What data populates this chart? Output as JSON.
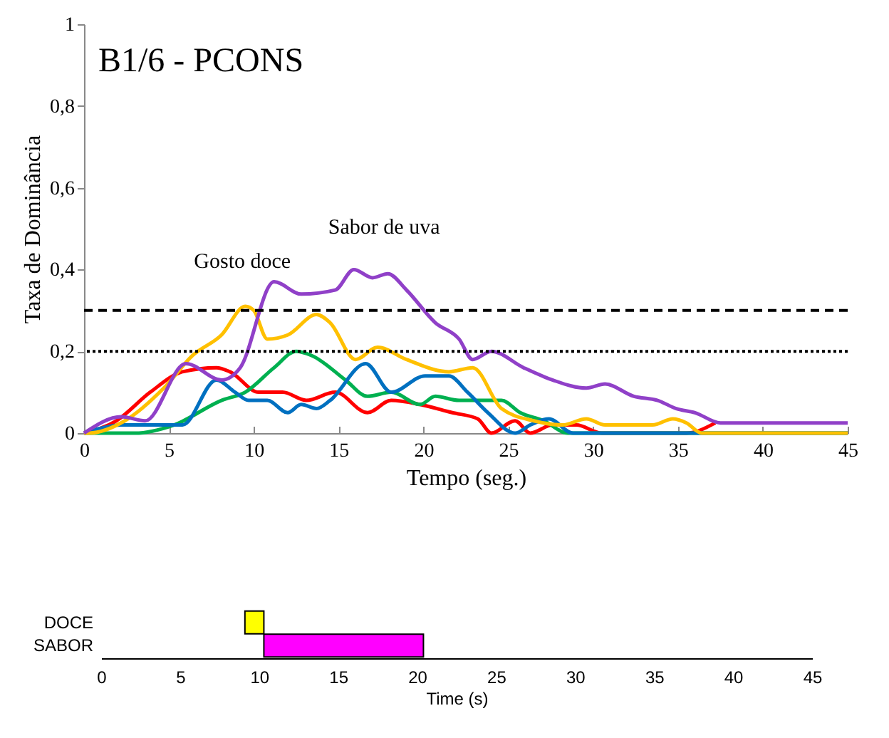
{
  "chart_data": [
    {
      "type": "line",
      "title": "B1/6 - PCONS",
      "xlabel": "Tempo (seg.)",
      "ylabel": "Taxa de Dominância",
      "xlim": [
        0,
        45
      ],
      "ylim": [
        0,
        1
      ],
      "xticks": [
        0,
        5,
        10,
        15,
        20,
        25,
        30,
        35,
        40,
        45
      ],
      "yticks": [
        0,
        {
          "value": 0.2,
          "label": "0,2"
        },
        {
          "value": 0.4,
          "label": "0,4"
        },
        {
          "value": 0.6,
          "label": "0,6"
        },
        {
          "value": 0.8,
          "label": "0,8"
        },
        1
      ],
      "grid": false,
      "legend": false,
      "marker": "none",
      "line_style": "solid",
      "ref_lines": [
        {
          "axis": "y",
          "value": 0.3,
          "line_style": "dashed",
          "color": "#000000"
        },
        {
          "axis": "y",
          "value": 0.2,
          "line_style": "dotted",
          "color": "#000000"
        }
      ],
      "annotations": [
        {
          "text": "Gosto doce",
          "x": 10,
          "y": 0.31
        },
        {
          "text": "Sabor de uva",
          "x": 16,
          "y": 0.4
        }
      ],
      "series": [
        {
          "color": "#ff0000",
          "x": [
            0,
            1.9,
            3.9,
            5.8,
            7.8,
            8.6,
            10.3,
            11.7,
            13.1,
            14.8,
            16.7,
            18.1,
            19.8,
            21.7,
            23.2,
            24,
            25.4,
            26.3,
            27.6,
            29,
            30.5,
            31.6,
            35.5,
            37.2
          ],
          "values": [
            0,
            0.03,
            0.1,
            0.15,
            0.16,
            0.15,
            0.1,
            0.1,
            0.08,
            0.1,
            0.05,
            0.08,
            0.07,
            0.05,
            0.035,
            0,
            0.03,
            0,
            0.02,
            0.02,
            0,
            0,
            0,
            0.025
          ]
        },
        {
          "color": "#00b050",
          "x": [
            0,
            3,
            5.3,
            8.1,
            9.5,
            11.2,
            12.5,
            13.4,
            15.4,
            16.7,
            18.1,
            19.8,
            20.7,
            22.1,
            23.5,
            24.6,
            25.7,
            27.1,
            28.5,
            45
          ],
          "values": [
            0,
            0,
            0.02,
            0.08,
            0.1,
            0.16,
            0.2,
            0.19,
            0.13,
            0.09,
            0.1,
            0.07,
            0.09,
            0.08,
            0.08,
            0.08,
            0.05,
            0.03,
            0,
            0
          ]
        },
        {
          "color": "#0070c0",
          "x": [
            0,
            0.8,
            2.2,
            5.8,
            7.8,
            8.9,
            9.7,
            10.8,
            12,
            12.8,
            13.7,
            14.5,
            16.6,
            18.1,
            20.1,
            21.5,
            22.6,
            23.8,
            25.4,
            26.3,
            27.4,
            28.8,
            45
          ],
          "values": [
            0,
            0.01,
            0.02,
            0.02,
            0.13,
            0.1,
            0.08,
            0.08,
            0.05,
            0.07,
            0.06,
            0.08,
            0.17,
            0.1,
            0.14,
            0.14,
            0.1,
            0.05,
            0,
            0.02,
            0.035,
            0,
            0
          ]
        },
        {
          "color": "#ffc000",
          "x": [
            0,
            0.3,
            2.4,
            4.7,
            6.4,
            8.1,
            9.5,
            10,
            10.8,
            12,
            13.7,
            14.5,
            16,
            17.3,
            19,
            21.5,
            22.9,
            24.6,
            26.5,
            28.2,
            29.6,
            30.7,
            31.8,
            33.5,
            34.7,
            35.5,
            36.4,
            45
          ],
          "values": [
            0,
            0,
            0.03,
            0.11,
            0.19,
            0.24,
            0.31,
            0.3,
            0.23,
            0.24,
            0.29,
            0.27,
            0.18,
            0.21,
            0.18,
            0.15,
            0.16,
            0.06,
            0.03,
            0.02,
            0.035,
            0.02,
            0.02,
            0.02,
            0.035,
            0.025,
            0,
            0
          ]
        },
        {
          "color": "#9040c8",
          "x": [
            0,
            2.2,
            3.6,
            6,
            8.1,
            9.2,
            11.2,
            12.8,
            14.8,
            15.9,
            17,
            17.9,
            19,
            20.7,
            22.1,
            22.9,
            24,
            25.9,
            27.6,
            29.6,
            30.7,
            32.4,
            33.8,
            34.9,
            36,
            37.5,
            45
          ],
          "values": [
            0,
            0.04,
            0.03,
            0.17,
            0.13,
            0.16,
            0.37,
            0.34,
            0.35,
            0.4,
            0.38,
            0.39,
            0.35,
            0.27,
            0.23,
            0.18,
            0.2,
            0.16,
            0.13,
            0.11,
            0.12,
            0.09,
            0.08,
            0.06,
            0.05,
            0.025,
            0.025
          ]
        }
      ]
    },
    {
      "type": "bar",
      "orientation": "horizontal",
      "grid": false,
      "xlabel": "Time (s)",
      "xlim": [
        0,
        45
      ],
      "xticks": [
        0,
        5,
        10,
        15,
        20,
        25,
        30,
        35,
        40,
        45
      ],
      "categories": [
        "DOCE",
        "SABOR"
      ],
      "base": [
        9.1,
        10.3
      ],
      "values": [
        1.2,
        10.1
      ],
      "colors": [
        "#ffff00",
        "#ff00ff"
      ]
    }
  ]
}
